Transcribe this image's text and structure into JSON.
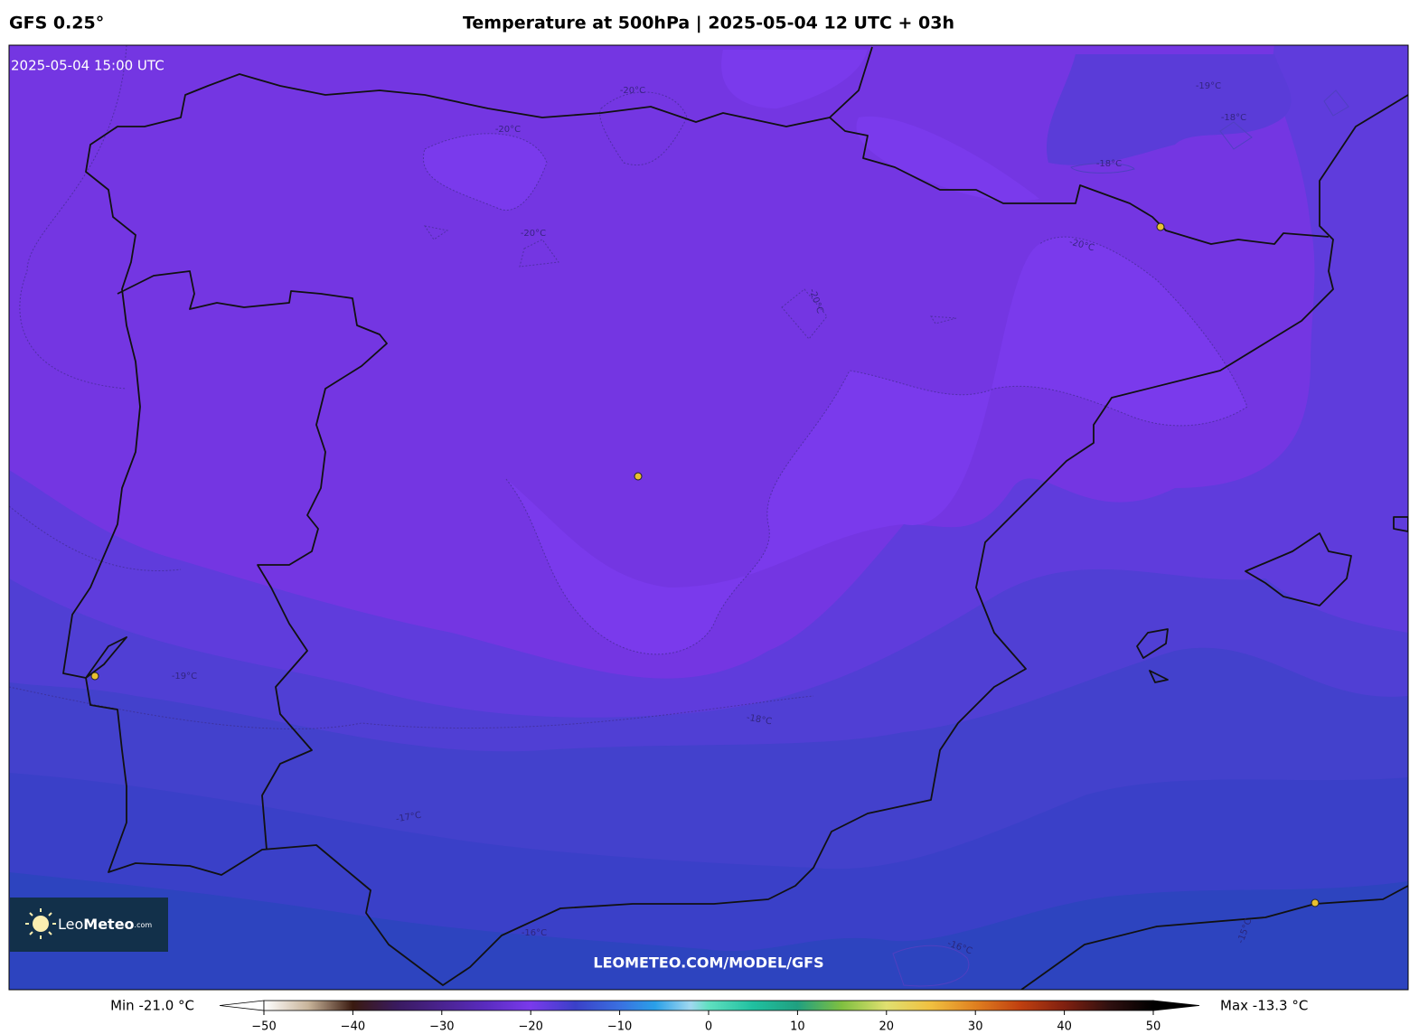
{
  "header": {
    "model": "GFS 0.25°",
    "title": "Temperature at 500hPa | 2025-05-04 12 UTC + 03h"
  },
  "map": {
    "valid_time": "2025-05-04 15:00 UTC",
    "watermark": "LEOMETEO.COM/MODEL/GFS",
    "contour_labels": [
      "-20°C",
      "-20°C",
      "-20°C",
      "-20°C",
      "-20°C",
      "-19°C",
      "-19°C",
      "-18°C",
      "-18°C",
      "-18°C",
      "-17°C",
      "-16°C",
      "-16°C",
      "-15°C"
    ]
  },
  "logo": {
    "name_light": "Leo",
    "name_bold": "Meteo",
    "suffix": ".com"
  },
  "colorbar": {
    "min_label": "Min -21.0 °C",
    "max_label": "Max -13.3 °C",
    "lim": [
      -50,
      50
    ],
    "ticks": [
      {
        "value": -50,
        "label": "−50"
      },
      {
        "value": -40,
        "label": "−40"
      },
      {
        "value": -30,
        "label": "−30"
      },
      {
        "value": -20,
        "label": "−20"
      },
      {
        "value": -10,
        "label": "−10"
      },
      0,
      10,
      20,
      30,
      40,
      50
    ]
  }
}
